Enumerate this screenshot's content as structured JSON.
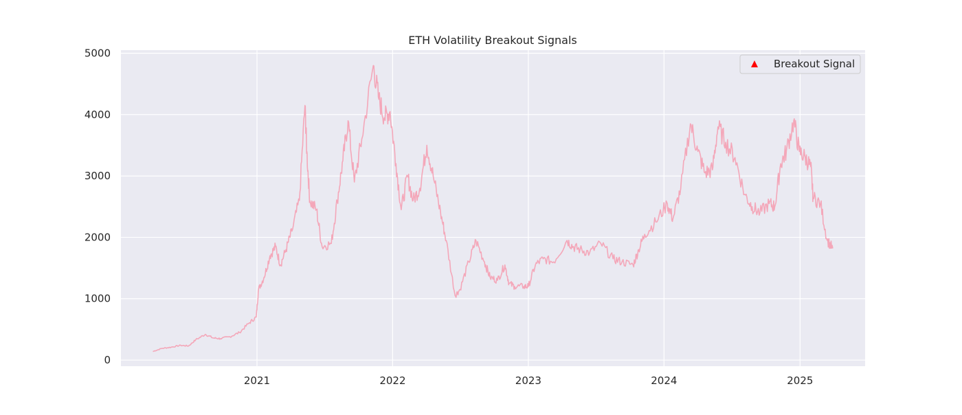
{
  "chart_data": {
    "type": "line",
    "title": "ETH Volatility Breakout Signals",
    "xlabel": "",
    "ylabel": "",
    "x_ticks": [
      "2021",
      "2022",
      "2023",
      "2024",
      "2025"
    ],
    "y_ticks": [
      "0",
      "1000",
      "2000",
      "3000",
      "4000",
      "5000"
    ],
    "xlim": [
      "2020-01-01",
      "2025-06-25"
    ],
    "ylim": [
      -100,
      5050
    ],
    "grid": true,
    "legend": {
      "placement": "top-right",
      "entries": [
        {
          "label": "Breakout Signal",
          "marker": "triangle-up",
          "color": "#ff0000"
        }
      ]
    },
    "colors": {
      "line": "#f4a7b9",
      "axes_bg": "#eaeaf2",
      "grid": "#ffffff",
      "signal": "#ff0000"
    },
    "series": [
      {
        "style": "line",
        "x": [
          "2020-03-27",
          "2020-04-20",
          "2020-05-15",
          "2020-06-10",
          "2020-07-01",
          "2020-07-20",
          "2020-08-15",
          "2020-09-05",
          "2020-09-25",
          "2020-10-20",
          "2020-11-15",
          "2020-12-10",
          "2020-12-30",
          "2021-01-05",
          "2021-01-20",
          "2021-02-05",
          "2021-02-20",
          "2021-03-05",
          "2021-03-20",
          "2021-04-05",
          "2021-04-25",
          "2021-05-10",
          "2021-05-15",
          "2021-05-23",
          "2021-06-10",
          "2021-06-25",
          "2021-07-20",
          "2021-08-05",
          "2021-08-20",
          "2021-09-03",
          "2021-09-20",
          "2021-10-10",
          "2021-11-10",
          "2021-11-25",
          "2021-12-10",
          "2021-12-25",
          "2022-01-10",
          "2022-01-24",
          "2022-02-10",
          "2022-02-25",
          "2022-03-15",
          "2022-04-03",
          "2022-04-20",
          "2022-05-10",
          "2022-05-25",
          "2022-06-18",
          "2022-07-01",
          "2022-07-25",
          "2022-08-13",
          "2022-09-05",
          "2022-09-20",
          "2022-10-10",
          "2022-10-30",
          "2022-11-10",
          "2022-11-25",
          "2022-12-20",
          "2023-01-01",
          "2023-01-20",
          "2023-02-10",
          "2023-03-10",
          "2023-04-15",
          "2023-05-01",
          "2023-05-20",
          "2023-06-15",
          "2023-07-15",
          "2023-08-17",
          "2023-09-10",
          "2023-10-10",
          "2023-10-25",
          "2023-11-10",
          "2023-12-10",
          "2024-01-10",
          "2024-01-25",
          "2024-02-15",
          "2024-03-12",
          "2024-04-01",
          "2024-04-20",
          "2024-05-10",
          "2024-05-25",
          "2024-06-15",
          "2024-07-10",
          "2024-08-05",
          "2024-08-25",
          "2024-09-15",
          "2024-10-10",
          "2024-10-25",
          "2024-11-10",
          "2024-11-25",
          "2024-12-15",
          "2024-12-30",
          "2025-01-15",
          "2025-01-30",
          "2025-02-05",
          "2025-02-25",
          "2025-03-15",
          "2025-03-30"
        ],
        "y": [
          140,
          190,
          210,
          240,
          230,
          330,
          420,
          360,
          350,
          380,
          450,
          600,
          700,
          1150,
          1350,
          1700,
          1850,
          1550,
          1800,
          2100,
          2600,
          4150,
          3400,
          2600,
          2450,
          1850,
          1900,
          2600,
          3250,
          3900,
          2900,
          3600,
          4800,
          4250,
          3950,
          4050,
          3200,
          2450,
          3000,
          2600,
          2800,
          3500,
          3000,
          2400,
          1950,
          1050,
          1150,
          1600,
          1950,
          1600,
          1350,
          1300,
          1550,
          1250,
          1200,
          1200,
          1200,
          1550,
          1650,
          1600,
          1950,
          1850,
          1800,
          1750,
          1900,
          1650,
          1600,
          1550,
          1800,
          2050,
          2250,
          2550,
          2300,
          2800,
          3850,
          3400,
          3050,
          3100,
          3800,
          3550,
          3300,
          2700,
          2500,
          2400,
          2550,
          2500,
          3200,
          3400,
          3900,
          3400,
          3300,
          3150,
          2650,
          2550,
          1950,
          1820
        ]
      }
    ]
  }
}
